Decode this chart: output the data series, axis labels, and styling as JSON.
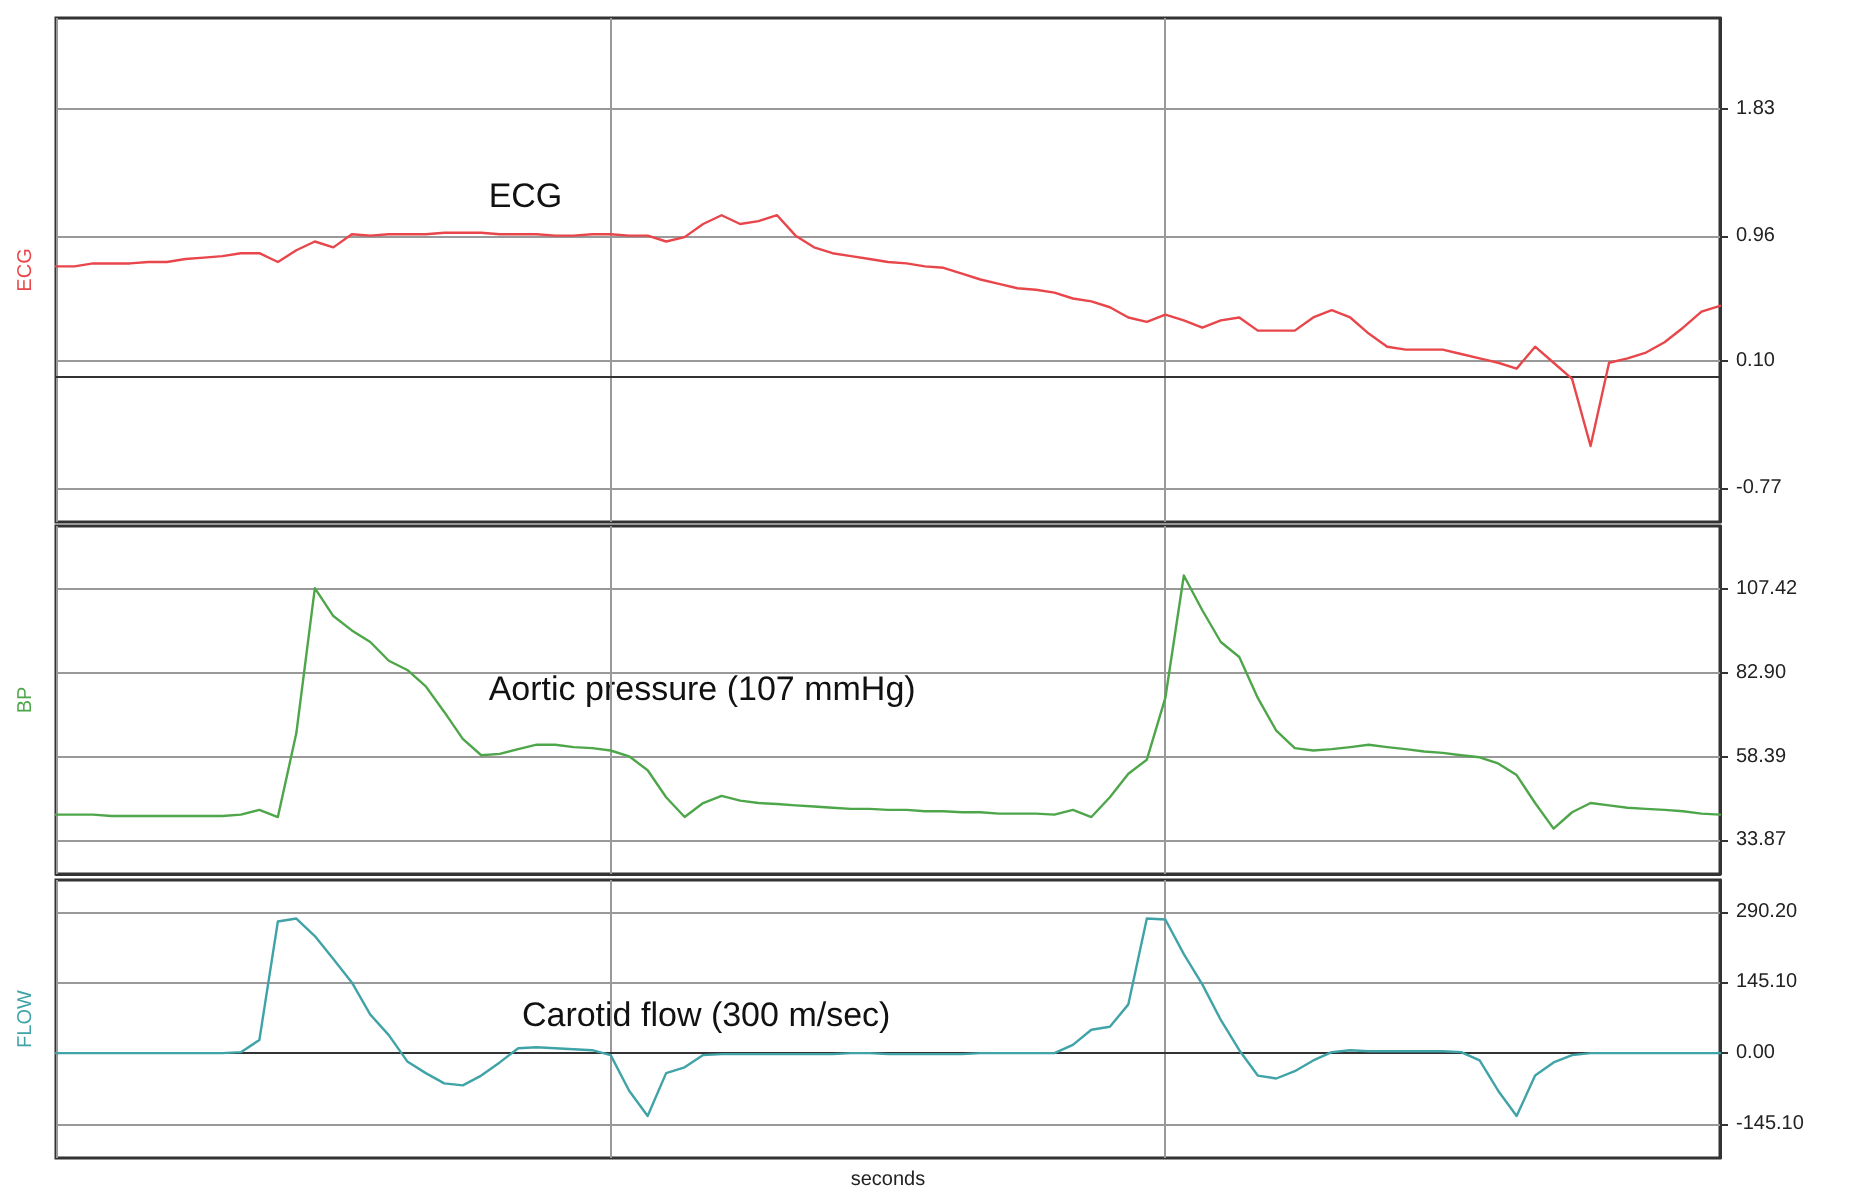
{
  "chart_data": [
    {
      "type": "line",
      "ylabel": "ECG",
      "annotations": [
        "ECG"
      ],
      "categories": [
        null,
        null,
        null,
        null,
        null,
        null,
        null,
        null,
        null,
        null,
        null,
        null,
        null,
        null,
        null,
        null,
        null,
        null,
        null,
        null,
        null,
        null,
        null,
        null,
        null,
        null,
        null,
        null,
        null,
        null,
        null,
        null,
        null,
        null,
        null,
        null,
        null,
        null,
        null,
        null,
        null,
        null,
        null,
        null,
        null,
        null,
        null,
        null,
        null,
        null,
        null,
        null,
        null,
        null,
        null,
        null,
        null,
        null,
        null,
        null,
        null,
        null,
        null,
        null,
        null,
        null,
        null,
        null,
        null,
        null,
        null,
        null,
        null,
        null,
        null,
        null,
        null,
        null,
        null,
        null,
        null,
        null,
        null,
        null,
        null,
        null,
        null,
        null,
        null,
        null,
        null
      ],
      "series": [
        {
          "color": "#e8464a",
          "values": [
            0.75,
            0.75,
            0.77,
            0.77,
            0.77,
            0.78,
            0.78,
            0.8,
            0.81,
            0.82,
            0.84,
            0.84,
            0.78,
            0.86,
            0.92,
            0.88,
            0.97,
            0.96,
            0.97,
            0.97,
            0.97,
            0.98,
            0.98,
            0.98,
            0.97,
            0.97,
            0.97,
            0.96,
            0.96,
            0.97,
            0.97,
            0.96,
            0.96,
            0.92,
            0.95,
            1.04,
            1.1,
            1.04,
            1.06,
            1.1,
            0.96,
            0.88,
            0.84,
            0.82,
            0.8,
            0.78,
            0.77,
            0.75,
            0.74,
            0.7,
            0.66,
            0.63,
            0.6,
            0.59,
            0.57,
            0.53,
            0.51,
            0.47,
            0.4,
            0.37,
            0.42,
            0.38,
            0.33,
            0.38,
            0.4,
            0.31,
            0.31,
            0.31,
            0.4,
            0.45,
            0.4,
            0.29,
            0.2,
            0.18,
            0.18,
            0.18,
            0.15,
            0.12,
            0.09,
            0.05,
            0.2,
            0.09,
            -0.02,
            -0.48,
            0.09,
            0.12,
            0.16,
            0.23,
            0.33,
            0.44,
            0.48
          ]
        }
      ],
      "ylim": [
        -1.0,
        2.45
      ],
      "yticks": [
        1.83,
        0.96,
        {
          "value": 0.1,
          "label": "0.10"
        },
        -0.77
      ],
      "grid": true,
      "tick_labels": "y",
      "marker": "none",
      "line_style": "solid"
    },
    {
      "type": "line",
      "ylabel": "BP",
      "annotations": [
        "Aortic pressure (107 mmHg)"
      ],
      "categories": [
        null,
        null,
        null,
        null,
        null,
        null,
        null,
        null,
        null,
        null,
        null,
        null,
        null,
        null,
        null,
        null,
        null,
        null,
        null,
        null,
        null,
        null,
        null,
        null,
        null,
        null,
        null,
        null,
        null,
        null,
        null,
        null,
        null,
        null,
        null,
        null,
        null,
        null,
        null,
        null,
        null,
        null,
        null,
        null,
        null,
        null,
        null,
        null,
        null,
        null,
        null,
        null,
        null,
        null,
        null,
        null,
        null,
        null,
        null,
        null,
        null,
        null,
        null,
        null,
        null,
        null,
        null,
        null,
        null,
        null,
        null,
        null,
        null,
        null,
        null,
        null,
        null,
        null,
        null,
        null,
        null,
        null,
        null,
        null,
        null,
        null,
        null,
        null,
        null,
        null,
        null
      ],
      "series": [
        {
          "color": "#4ea64a",
          "values": [
            41.4,
            41.4,
            41.4,
            41.0,
            41.0,
            41.0,
            41.0,
            41.0,
            41.0,
            41.0,
            41.4,
            42.8,
            40.7,
            65.3,
            107.8,
            99.6,
            95.4,
            92.0,
            86.5,
            83.8,
            79.0,
            71.5,
            63.6,
            58.8,
            59.2,
            60.6,
            61.9,
            61.9,
            61.2,
            60.9,
            60.2,
            58.5,
            54.4,
            46.5,
            40.7,
            44.8,
            46.9,
            45.5,
            44.8,
            44.5,
            44.1,
            43.8,
            43.4,
            43.1,
            43.1,
            42.8,
            42.8,
            42.4,
            42.4,
            42.1,
            42.1,
            41.7,
            41.7,
            41.7,
            41.4,
            42.8,
            40.7,
            46.5,
            53.4,
            57.5,
            75.6,
            111.5,
            101.3,
            92.0,
            87.6,
            75.6,
            66.0,
            60.9,
            60.2,
            60.6,
            61.2,
            61.9,
            61.2,
            60.6,
            59.9,
            59.5,
            58.8,
            58.2,
            56.4,
            53.0,
            44.8,
            37.3,
            42.1,
            44.8,
            44.1,
            43.4,
            43.1,
            42.8,
            42.4,
            41.7,
            41.4
          ]
        }
      ],
      "ylim": [
        24,
        126
      ],
      "yticks": [
        107.42,
        {
          "value": 82.9,
          "label": "82.90"
        },
        58.39,
        33.87
      ],
      "grid": true,
      "tick_labels": "y",
      "marker": "none",
      "line_style": "solid"
    },
    {
      "type": "line",
      "ylabel": "FLOW",
      "xlabel": "seconds",
      "annotations": [
        "Carotid flow (300 m/sec)"
      ],
      "categories": [
        null,
        null,
        null,
        null,
        null,
        null,
        null,
        null,
        null,
        null,
        null,
        null,
        null,
        null,
        null,
        null,
        null,
        null,
        null,
        null,
        null,
        null,
        null,
        null,
        null,
        null,
        null,
        null,
        null,
        null,
        null,
        null,
        null,
        null,
        null,
        null,
        null,
        null,
        null,
        null,
        null,
        null,
        null,
        null,
        null,
        null,
        null,
        null,
        null,
        null,
        null,
        null,
        null,
        null,
        null,
        null,
        null,
        null,
        null,
        null,
        null,
        null,
        null,
        null,
        null,
        null,
        null,
        null,
        null,
        null,
        null,
        null,
        null,
        null,
        null,
        null,
        null,
        null,
        null,
        null,
        null,
        null,
        null,
        null,
        null,
        null,
        null,
        null,
        null,
        null,
        null
      ],
      "series": [
        {
          "color": "#3fa3a8",
          "values": [
            0,
            0,
            0,
            0,
            0,
            0,
            0,
            0,
            0,
            0,
            2,
            27,
            270,
            276,
            240,
            193,
            145,
            79,
            37,
            -17,
            -41,
            -62,
            -66,
            -46,
            -19,
            10,
            12,
            10,
            8,
            6,
            -4,
            -77,
            -129,
            -41,
            -29,
            -4,
            -2,
            -2,
            -2,
            -2,
            -2,
            -2,
            -2,
            0,
            0,
            -2,
            -2,
            -2,
            -2,
            -2,
            0,
            0,
            0,
            0,
            0,
            17,
            48,
            54,
            100,
            276,
            274,
            203,
            141,
            68,
            6,
            -46,
            -52,
            -37,
            -15,
            2,
            6,
            4,
            4,
            4,
            4,
            4,
            2,
            -15,
            -77,
            -129,
            -46,
            -19,
            -4,
            0,
            0,
            0,
            0,
            0,
            0,
            0,
            0
          ]
        }
      ],
      "ylim": [
        -215,
        355
      ],
      "yticks": [
        {
          "value": 290.2,
          "label": "290.20"
        },
        {
          "value": 145.1,
          "label": "145.10"
        },
        {
          "value": 0,
          "label": "0.00"
        },
        {
          "value": -145.1,
          "label": "-145.10"
        }
      ],
      "grid": true,
      "tick_labels": "y",
      "marker": "none",
      "line_style": "solid"
    }
  ]
}
